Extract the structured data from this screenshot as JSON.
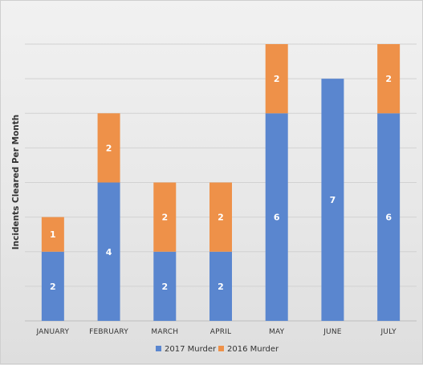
{
  "chart_data": {
    "type": "bar",
    "stacked": true,
    "title": "",
    "xlabel": "",
    "ylabel": "Incidents Cleared Per Month",
    "categories": [
      "JANUARY",
      "FEBRUARY",
      "MARCH",
      "APRIL",
      "MAY",
      "JUNE",
      "JULY"
    ],
    "series": [
      {
        "name": "2017 Murder",
        "values": [
          2,
          4,
          2,
          2,
          6,
          7,
          6
        ],
        "color": "#5a86cf"
      },
      {
        "name": "2016 Murder",
        "values": [
          1,
          2,
          2,
          2,
          2,
          0,
          2
        ],
        "color": "#ee9149"
      }
    ],
    "ylim": [
      0,
      8
    ],
    "grid": true,
    "legend": "bottom",
    "data_labels": true
  }
}
